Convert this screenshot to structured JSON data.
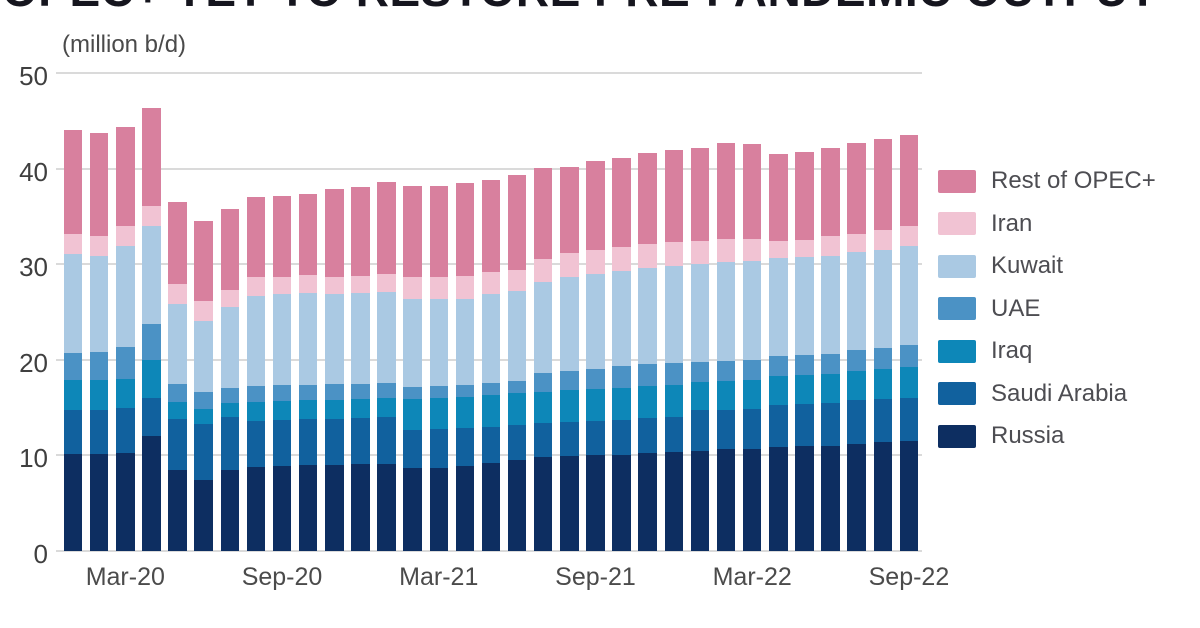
{
  "title": "OPEC+ YET TO RESTORE PRE-PANDEMIC OUTPUT",
  "subtitle": "(million b/d)",
  "colors": {
    "background": "#ffffff",
    "gridline": "#dadada",
    "title_text": "#15151e",
    "axis_text": "#3f3f3f",
    "legend_text": "#4d4d52"
  },
  "chart_data": {
    "type": "bar",
    "stacked": true,
    "title": "OPEC+ YET TO RESTORE PRE-PANDEMIC OUTPUT",
    "subtitle": "(million b/d)",
    "ylabel": "million b/d",
    "ylim": [
      0,
      50
    ],
    "yticks": [
      0,
      10,
      20,
      30,
      40,
      50
    ],
    "grid": "horizontal",
    "legend_position": "right",
    "legend_order_top_to_bottom": [
      "Rest of OPEC+",
      "Iran",
      "Kuwait",
      "UAE",
      "Iraq",
      "Saudi Arabia",
      "Russia"
    ],
    "categories": [
      "Jan-20",
      "Feb-20",
      "Mar-20",
      "Apr-20",
      "May-20",
      "Jun-20",
      "Jul-20",
      "Aug-20",
      "Sep-20",
      "Oct-20",
      "Nov-20",
      "Dec-20",
      "Jan-21",
      "Feb-21",
      "Mar-21",
      "Apr-21",
      "May-21",
      "Jun-21",
      "Jul-21",
      "Aug-21",
      "Sep-21",
      "Oct-21",
      "Nov-21",
      "Dec-21",
      "Jan-22",
      "Feb-22",
      "Mar-22",
      "Apr-22",
      "May-22",
      "Jun-22",
      "Jul-22",
      "Aug-22",
      "Sep-22"
    ],
    "xtick_labels": [
      "Mar-20",
      "Sep-20",
      "Mar-21",
      "Sep-21",
      "Mar-22",
      "Sep-22"
    ],
    "xtick_bar_indices": [
      2,
      8,
      14,
      20,
      26,
      32
    ],
    "stack_order_note": "series listed bottom-to-top as stacked in the bars",
    "series": [
      {
        "name": "Russia",
        "color": "#0d2e61",
        "values": [
          10.1,
          10.1,
          10.2,
          12.0,
          8.5,
          7.4,
          8.5,
          8.8,
          8.9,
          9.0,
          9.0,
          9.1,
          9.1,
          8.7,
          8.7,
          8.9,
          9.2,
          9.5,
          9.8,
          9.9,
          10.0,
          10.0,
          10.3,
          10.4,
          10.5,
          10.7,
          10.7,
          10.9,
          11.0,
          11.0,
          11.2,
          11.4,
          11.5
        ]
      },
      {
        "name": "Saudi Arabia",
        "color": "#11619e",
        "values": [
          4.7,
          4.7,
          4.8,
          4.0,
          5.3,
          5.9,
          5.5,
          4.8,
          4.8,
          4.8,
          4.8,
          4.8,
          4.9,
          4.0,
          4.1,
          4.0,
          3.8,
          3.7,
          3.6,
          3.6,
          3.6,
          3.7,
          3.6,
          3.65,
          4.25,
          4.1,
          4.2,
          4.4,
          4.4,
          4.5,
          4.6,
          4.5,
          4.5
        ]
      },
      {
        "name": "Iraq",
        "color": "#0d87b8",
        "values": [
          3.1,
          3.1,
          3.0,
          4.0,
          1.8,
          1.6,
          1.5,
          2.0,
          2.0,
          2.0,
          2.0,
          2.0,
          2.0,
          3.2,
          3.2,
          3.2,
          3.3,
          3.3,
          3.2,
          3.3,
          3.3,
          3.4,
          3.4,
          3.35,
          2.95,
          3.0,
          3.0,
          3.0,
          3.0,
          3.0,
          3.0,
          3.1,
          3.2
        ]
      },
      {
        "name": "UAE",
        "color": "#4b92c5",
        "values": [
          2.8,
          2.9,
          3.3,
          3.7,
          1.9,
          1.7,
          1.5,
          1.7,
          1.65,
          1.6,
          1.65,
          1.6,
          1.55,
          1.3,
          1.3,
          1.3,
          1.3,
          1.3,
          2.0,
          2.0,
          2.1,
          2.2,
          2.3,
          2.3,
          2.1,
          2.1,
          2.1,
          2.1,
          2.1,
          2.1,
          2.2,
          2.2,
          2.3
        ]
      },
      {
        "name": "Kuwait",
        "color": "#aac9e3",
        "values": [
          10.4,
          10.1,
          10.6,
          10.3,
          8.3,
          7.5,
          8.5,
          9.4,
          9.55,
          9.6,
          9.45,
          9.45,
          9.55,
          9.2,
          9.1,
          9.0,
          9.3,
          9.4,
          9.5,
          9.9,
          10.0,
          10.0,
          10.0,
          10.1,
          10.2,
          10.3,
          10.3,
          10.3,
          10.3,
          10.3,
          10.3,
          10.3,
          10.4
        ]
      },
      {
        "name": "Iran",
        "color": "#f1c3d3",
        "values": [
          2.1,
          2.1,
          2.1,
          2.1,
          2.1,
          2.1,
          1.8,
          2.0,
          1.8,
          1.9,
          1.8,
          1.85,
          1.9,
          2.3,
          2.3,
          2.4,
          2.3,
          2.2,
          2.4,
          2.5,
          2.5,
          2.5,
          2.5,
          2.5,
          2.4,
          2.4,
          2.3,
          1.7,
          1.7,
          2.0,
          1.9,
          2.1,
          2.1
        ]
      },
      {
        "name": "Rest of OPEC+",
        "color": "#d8809e",
        "values": [
          10.8,
          10.7,
          10.3,
          10.2,
          8.6,
          8.3,
          8.5,
          8.3,
          8.4,
          8.4,
          9.2,
          9.3,
          9.6,
          9.5,
          9.5,
          9.7,
          9.6,
          9.9,
          9.6,
          9.0,
          9.3,
          9.3,
          9.5,
          9.6,
          9.8,
          10.1,
          10.0,
          9.1,
          9.2,
          9.3,
          9.5,
          9.5,
          9.5
        ]
      }
    ]
  }
}
